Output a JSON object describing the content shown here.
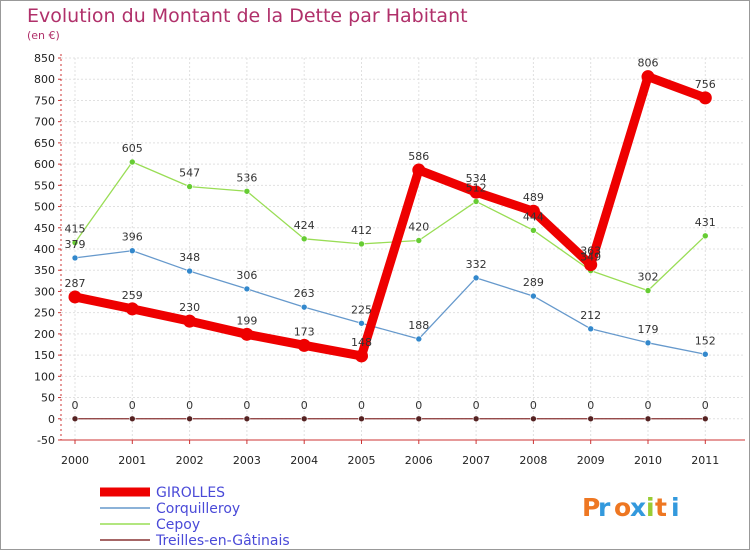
{
  "chart_data": {
    "type": "line",
    "title": "Evolution du Montant de la Dette par Habitant",
    "subtitle": "(en €)",
    "categories": [
      "2000",
      "2001",
      "2002",
      "2003",
      "2004",
      "2005",
      "2006",
      "2007",
      "2008",
      "2009",
      "2010",
      "2011"
    ],
    "ylim": [
      -50,
      850
    ],
    "yticks": [
      -50,
      0,
      50,
      100,
      150,
      200,
      250,
      300,
      350,
      400,
      450,
      500,
      550,
      600,
      650,
      700,
      750,
      800,
      850
    ],
    "grid": true,
    "legend_position": "bottom-left",
    "series": [
      {
        "name": "Cepoy",
        "color": "#99dd55",
        "marker": "#66cc33",
        "values": [
          415,
          605,
          547,
          536,
          424,
          412,
          420,
          512,
          444,
          349,
          302,
          431
        ]
      },
      {
        "name": "Corquilleroy",
        "color": "#6699cc",
        "marker": "#3388cc",
        "values": [
          379,
          396,
          348,
          306,
          263,
          225,
          188,
          332,
          289,
          212,
          179,
          152
        ]
      },
      {
        "name": "Treilles-en-Gâtinais",
        "color": "#883333",
        "marker": "#552222",
        "values": [
          0,
          0,
          0,
          0,
          0,
          0,
          0,
          0,
          0,
          0,
          0,
          0
        ]
      },
      {
        "name": "GIROLLES",
        "color": "#ee0000",
        "marker": "#ee0000",
        "values": [
          287,
          259,
          230,
          199,
          173,
          148,
          586,
          534,
          489,
          363,
          806,
          756
        ]
      }
    ],
    "legend_order": [
      "GIROLLES",
      "Corquilleroy",
      "Cepoy",
      "Treilles-en-Gâtinais"
    ]
  },
  "logo": {
    "text": "Proxiti"
  }
}
